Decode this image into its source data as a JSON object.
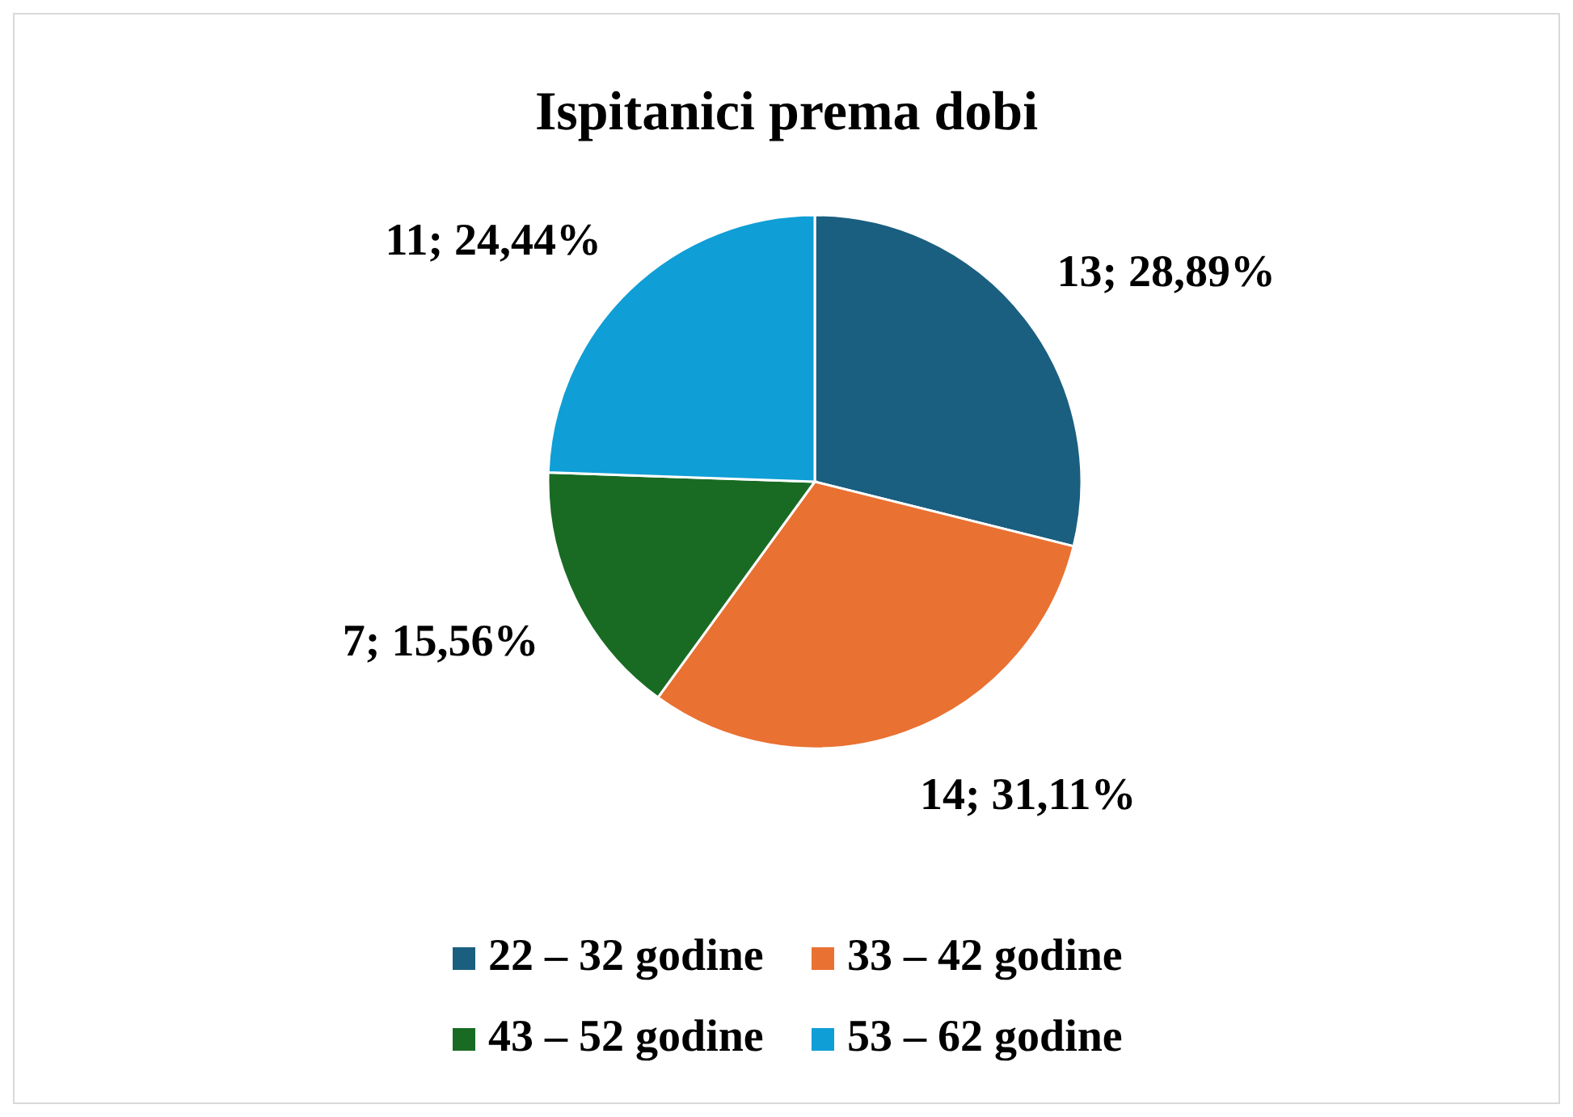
{
  "chart_data": {
    "type": "pie",
    "title": "Ispitanici prema dobi",
    "categories": [
      "22 – 32 godine",
      "33 – 42 godine",
      "43 – 52 godine",
      "53 – 62 godine"
    ],
    "values": [
      13,
      14,
      7,
      11
    ],
    "colors": [
      "#1a5f80",
      "#e97132",
      "#196b24",
      "#0f9ed5"
    ],
    "value_labels": [
      "13; 28,89%",
      "14; 31,11%",
      "7; 15,56%",
      "11; 24,44%"
    ],
    "legend": "bottom"
  }
}
